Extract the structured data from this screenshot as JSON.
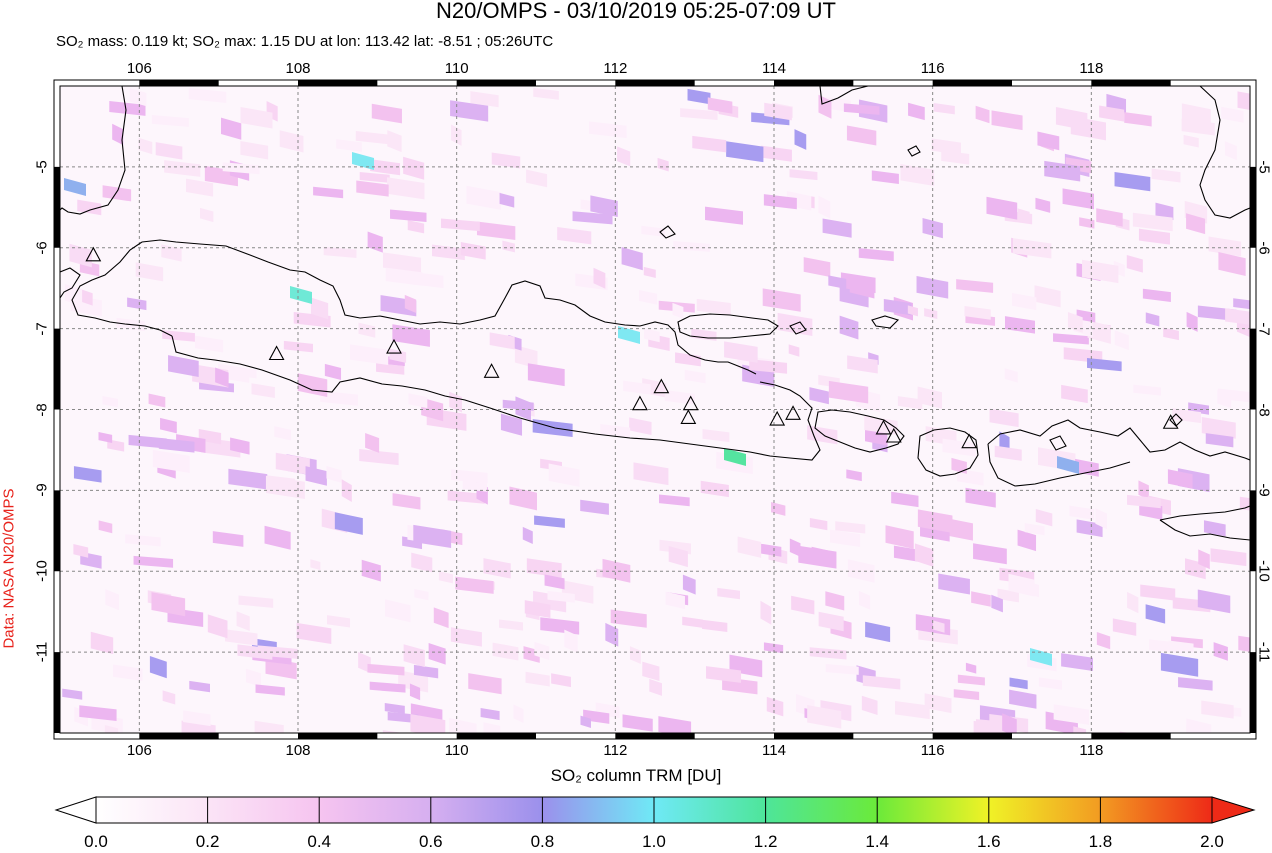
{
  "title": "N20/OMPS - 03/10/2019 05:25-07:09 UT",
  "subtitle": "SO₂ mass: 0.119 kt; SO₂ max: 1.15 DU at lon: 113.42 lat: -8.51 ; 05:26UTC",
  "credit": "Data: NASA N20/OMPS",
  "map": {
    "lon_range": [
      105,
      120
    ],
    "lat_range": [
      -12,
      -4
    ],
    "lon_ticks": [
      "106",
      "108",
      "110",
      "112",
      "114",
      "116",
      "118"
    ],
    "lat_ticks": [
      "-5",
      "-6",
      "-7",
      "-8",
      "-9",
      "-10",
      "-11"
    ],
    "volcanoes": [
      {
        "lon": 105.42,
        "lat": -6.1
      },
      {
        "lon": 107.73,
        "lat": -7.32
      },
      {
        "lon": 109.21,
        "lat": -7.24
      },
      {
        "lon": 110.44,
        "lat": -7.54
      },
      {
        "lon": 112.31,
        "lat": -7.94
      },
      {
        "lon": 112.58,
        "lat": -7.73
      },
      {
        "lon": 112.95,
        "lat": -7.94
      },
      {
        "lon": 112.92,
        "lat": -8.11
      },
      {
        "lon": 114.04,
        "lat": -8.13
      },
      {
        "lon": 114.24,
        "lat": -8.06
      },
      {
        "lon": 115.38,
        "lat": -8.24
      },
      {
        "lon": 115.51,
        "lat": -8.34
      },
      {
        "lon": 116.46,
        "lat": -8.41
      },
      {
        "lon": 119.0,
        "lat": -8.17
      }
    ]
  },
  "colorbar": {
    "title": "SO₂ column TRM [DU]",
    "labels": [
      "0.0",
      "0.2",
      "0.4",
      "0.6",
      "0.8",
      "1.0",
      "1.2",
      "1.4",
      "1.6",
      "1.8",
      "2.0"
    ],
    "min": 0.0,
    "max": 2.0
  }
}
